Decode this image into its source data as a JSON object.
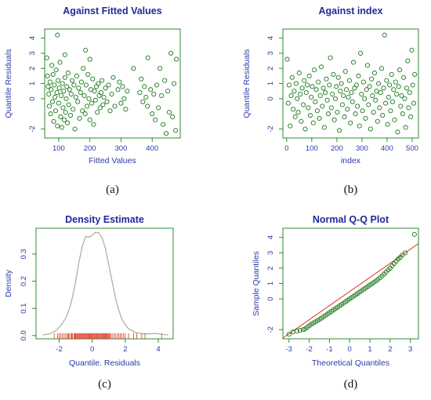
{
  "figure_panels": [
    "(a)",
    "(b)",
    "(c)",
    "(d)"
  ],
  "chart_data": [
    {
      "id": "a",
      "type": "scatter",
      "title": "Against Fitted Values",
      "xlabel": "Fitted Values",
      "ylabel": "Quantile Residuals",
      "panel_label": "(a)",
      "xlim": [
        55,
        490
      ],
      "ylim": [
        -2.6,
        4.6
      ],
      "xticks": [
        100,
        200,
        300,
        400
      ],
      "yticks": [
        -2,
        0,
        1,
        2,
        3,
        4
      ],
      "marker_color": "#1a7a1a",
      "points": [
        [
          62,
          2.7
        ],
        [
          64,
          1.5
        ],
        [
          66,
          0.8
        ],
        [
          68,
          0.3
        ],
        [
          70,
          -0.5
        ],
        [
          72,
          1.1
        ],
        [
          74,
          -1.0
        ],
        [
          76,
          0.6
        ],
        [
          78,
          2.2
        ],
        [
          80,
          -0.2
        ],
        [
          82,
          1.6
        ],
        [
          84,
          -1.5
        ],
        [
          86,
          0.9
        ],
        [
          88,
          0.1
        ],
        [
          90,
          -0.8
        ],
        [
          92,
          1.9
        ],
        [
          94,
          0.4
        ],
        [
          96,
          -1.8
        ],
        [
          98,
          1.2
        ],
        [
          100,
          -0.3
        ],
        [
          102,
          0.7
        ],
        [
          104,
          2.4
        ],
        [
          106,
          -1.2
        ],
        [
          108,
          0.2
        ],
        [
          110,
          -1.9
        ],
        [
          112,
          1.0
        ],
        [
          114,
          -0.6
        ],
        [
          116,
          0.5
        ],
        [
          118,
          -1.4
        ],
        [
          120,
          1.4
        ],
        [
          122,
          -0.9
        ],
        [
          124,
          0.0
        ],
        [
          126,
          0.8
        ],
        [
          128,
          -1.6
        ],
        [
          130,
          1.7
        ],
        [
          132,
          -0.4
        ],
        [
          135,
          0.6
        ],
        [
          138,
          -1.1
        ],
        [
          140,
          0.3
        ],
        [
          143,
          1.2
        ],
        [
          146,
          -0.7
        ],
        [
          149,
          0.9
        ],
        [
          152,
          -2.0
        ],
        [
          155,
          0.1
        ],
        [
          158,
          1.5
        ],
        [
          161,
          -0.2
        ],
        [
          164,
          0.7
        ],
        [
          167,
          -1.3
        ],
        [
          170,
          0.4
        ],
        [
          173,
          1.1
        ],
        [
          176,
          -0.8
        ],
        [
          179,
          2.0
        ],
        [
          182,
          0.2
        ],
        [
          185,
          -1.0
        ],
        [
          188,
          0.9
        ],
        [
          191,
          -0.5
        ],
        [
          194,
          1.6
        ],
        [
          197,
          0.0
        ],
        [
          200,
          -1.4
        ],
        [
          203,
          0.6
        ],
        [
          206,
          -0.3
        ],
        [
          209,
          1.3
        ],
        [
          212,
          -1.7
        ],
        [
          215,
          0.5
        ],
        [
          218,
          -0.1
        ],
        [
          221,
          0.8
        ],
        [
          224,
          -0.9
        ],
        [
          227,
          1.0
        ],
        [
          230,
          0.2
        ],
        [
          233,
          -0.6
        ],
        [
          236,
          0.4
        ],
        [
          239,
          1.2
        ],
        [
          242,
          -0.4
        ],
        [
          245,
          0.1
        ],
        [
          250,
          0.7
        ],
        [
          255,
          -0.2
        ],
        [
          260,
          0.9
        ],
        [
          265,
          -0.8
        ],
        [
          270,
          0.3
        ],
        [
          275,
          1.4
        ],
        [
          280,
          -0.5
        ],
        [
          290,
          0.6
        ],
        [
          295,
          1.1
        ],
        [
          300,
          -0.3
        ],
        [
          305,
          0.8
        ],
        [
          310,
          0.0
        ],
        [
          315,
          -0.7
        ],
        [
          320,
          0.5
        ],
        [
          360,
          0.4
        ],
        [
          365,
          1.3
        ],
        [
          370,
          -0.2
        ],
        [
          375,
          0.8
        ],
        [
          380,
          0.1
        ],
        [
          385,
          -0.5
        ],
        [
          395,
          0.6
        ],
        [
          400,
          -1.0
        ],
        [
          405,
          0.3
        ],
        [
          410,
          -1.4
        ],
        [
          415,
          0.9
        ],
        [
          420,
          -0.6
        ],
        [
          425,
          2.0
        ],
        [
          430,
          0.2
        ],
        [
          435,
          -1.7
        ],
        [
          440,
          1.2
        ],
        [
          445,
          -2.3
        ],
        [
          450,
          0.5
        ],
        [
          455,
          -0.9
        ],
        [
          460,
          3.0
        ],
        [
          465,
          -1.2
        ],
        [
          470,
          1.0
        ],
        [
          475,
          -2.1
        ],
        [
          478,
          2.6
        ],
        [
          96,
          4.2
        ],
        [
          186,
          3.2
        ],
        [
          120,
          2.9
        ],
        [
          200,
          2.6
        ],
        [
          340,
          2.0
        ],
        [
          386,
          2.7
        ]
      ]
    },
    {
      "id": "b",
      "type": "scatter",
      "title": "Against  index",
      "xlabel": "index",
      "ylabel": "Quantile Residuals",
      "panel_label": "(b)",
      "xlim": [
        -15,
        525
      ],
      "ylim": [
        -2.6,
        4.6
      ],
      "xticks": [
        0,
        100,
        200,
        300,
        400,
        500
      ],
      "yticks": [
        -2,
        0,
        1,
        2,
        3,
        4
      ],
      "marker_color": "#1a7a1a",
      "points": [
        [
          2,
          2.6
        ],
        [
          6,
          -0.3
        ],
        [
          10,
          0.9
        ],
        [
          14,
          -1.8
        ],
        [
          18,
          0.2
        ],
        [
          22,
          1.4
        ],
        [
          26,
          -0.7
        ],
        [
          30,
          0.5
        ],
        [
          34,
          -1.2
        ],
        [
          38,
          1.0
        ],
        [
          42,
          0.0
        ],
        [
          46,
          -0.9
        ],
        [
          50,
          1.7
        ],
        [
          54,
          0.3
        ],
        [
          58,
          -1.5
        ],
        [
          62,
          0.7
        ],
        [
          66,
          -0.4
        ],
        [
          70,
          1.2
        ],
        [
          74,
          -2.0
        ],
        [
          78,
          0.4
        ],
        [
          82,
          0.9
        ],
        [
          86,
          -0.6
        ],
        [
          90,
          1.5
        ],
        [
          94,
          -1.1
        ],
        [
          98,
          0.1
        ],
        [
          102,
          0.8
        ],
        [
          106,
          -1.6
        ],
        [
          110,
          1.9
        ],
        [
          114,
          -0.2
        ],
        [
          118,
          0.6
        ],
        [
          122,
          -0.8
        ],
        [
          126,
          1.1
        ],
        [
          130,
          -1.3
        ],
        [
          134,
          0.2
        ],
        [
          138,
          2.1
        ],
        [
          142,
          -0.5
        ],
        [
          146,
          0.7
        ],
        [
          150,
          -1.9
        ],
        [
          154,
          0.4
        ],
        [
          158,
          1.3
        ],
        [
          162,
          -0.1
        ],
        [
          166,
          -1.0
        ],
        [
          170,
          0.9
        ],
        [
          174,
          2.7
        ],
        [
          178,
          -0.6
        ],
        [
          182,
          0.3
        ],
        [
          186,
          1.6
        ],
        [
          190,
          -1.4
        ],
        [
          194,
          0.0
        ],
        [
          198,
          0.8
        ],
        [
          202,
          -0.9
        ],
        [
          206,
          1.4
        ],
        [
          210,
          -2.1
        ],
        [
          214,
          0.5
        ],
        [
          218,
          1.0
        ],
        [
          222,
          -0.4
        ],
        [
          226,
          0.2
        ],
        [
          230,
          -1.2
        ],
        [
          234,
          1.8
        ],
        [
          238,
          0.6
        ],
        [
          242,
          -0.7
        ],
        [
          246,
          0.1
        ],
        [
          250,
          1.2
        ],
        [
          254,
          -1.6
        ],
        [
          258,
          0.4
        ],
        [
          262,
          -0.2
        ],
        [
          266,
          2.4
        ],
        [
          270,
          0.7
        ],
        [
          274,
          -1.0
        ],
        [
          278,
          0.9
        ],
        [
          282,
          -0.5
        ],
        [
          286,
          1.5
        ],
        [
          290,
          -1.8
        ],
        [
          294,
          3.0
        ],
        [
          298,
          0.3
        ],
        [
          302,
          -0.8
        ],
        [
          306,
          1.1
        ],
        [
          310,
          0.0
        ],
        [
          314,
          -1.3
        ],
        [
          318,
          0.6
        ],
        [
          322,
          2.2
        ],
        [
          326,
          -0.4
        ],
        [
          330,
          0.8
        ],
        [
          334,
          -2.0
        ],
        [
          338,
          1.3
        ],
        [
          342,
          0.2
        ],
        [
          346,
          -0.9
        ],
        [
          350,
          1.7
        ],
        [
          354,
          -0.1
        ],
        [
          358,
          0.5
        ],
        [
          362,
          -1.5
        ],
        [
          366,
          1.0
        ],
        [
          370,
          -0.6
        ],
        [
          374,
          0.4
        ],
        [
          378,
          2.0
        ],
        [
          382,
          -1.1
        ],
        [
          386,
          0.7
        ],
        [
          390,
          4.2
        ],
        [
          394,
          -0.3
        ],
        [
          398,
          1.2
        ],
        [
          402,
          -1.7
        ],
        [
          406,
          0.1
        ],
        [
          410,
          0.9
        ],
        [
          414,
          -0.8
        ],
        [
          418,
          1.6
        ],
        [
          422,
          -0.2
        ],
        [
          426,
          0.6
        ],
        [
          430,
          -1.4
        ],
        [
          434,
          1.1
        ],
        [
          438,
          0.3
        ],
        [
          442,
          -2.2
        ],
        [
          446,
          0.8
        ],
        [
          450,
          1.9
        ],
        [
          454,
          -0.5
        ],
        [
          458,
          0.2
        ],
        [
          462,
          -1.0
        ],
        [
          466,
          1.4
        ],
        [
          470,
          0.0
        ],
        [
          474,
          -1.9
        ],
        [
          478,
          0.7
        ],
        [
          482,
          2.5
        ],
        [
          486,
          -0.6
        ],
        [
          490,
          0.4
        ],
        [
          494,
          -1.2
        ],
        [
          498,
          3.2
        ],
        [
          502,
          0.9
        ],
        [
          506,
          -0.3
        ],
        [
          510,
          1.6
        ]
      ]
    },
    {
      "id": "c",
      "type": "line",
      "title": "Density Estimate",
      "xlabel": "Quantile. Residuals",
      "ylabel": "Density",
      "panel_label": "(c)",
      "xlim": [
        -3.4,
        4.9
      ],
      "ylim": [
        -0.012,
        0.395
      ],
      "xticks": [
        -2,
        0,
        2,
        4
      ],
      "yticks": [
        0.0,
        0.1,
        0.2,
        0.3
      ],
      "line_color": "#b5b19a",
      "rug_color": "#e0301e",
      "x": [
        -3.0,
        -2.6,
        -2.2,
        -2.0,
        -1.8,
        -1.6,
        -1.4,
        -1.2,
        -1.0,
        -0.8,
        -0.6,
        -0.4,
        -0.2,
        0.0,
        0.2,
        0.4,
        0.6,
        0.8,
        1.0,
        1.2,
        1.4,
        1.6,
        1.8,
        2.0,
        2.2,
        2.6,
        3.0,
        3.4,
        3.8,
        4.2,
        4.6
      ],
      "y": [
        0.002,
        0.006,
        0.018,
        0.03,
        0.045,
        0.065,
        0.095,
        0.14,
        0.2,
        0.27,
        0.33,
        0.365,
        0.362,
        0.37,
        0.38,
        0.378,
        0.36,
        0.32,
        0.26,
        0.2,
        0.14,
        0.095,
        0.06,
        0.04,
        0.025,
        0.012,
        0.007,
        0.006,
        0.008,
        0.005,
        0.002
      ],
      "rug": [
        -2.3,
        -2.1,
        -2.0,
        -1.9,
        -1.8,
        -1.7,
        -1.6,
        -1.5,
        -1.45,
        -1.4,
        -1.3,
        -1.25,
        -1.2,
        -1.1,
        -1.05,
        -1.0,
        -0.95,
        -0.9,
        -0.85,
        -0.8,
        -0.75,
        -0.7,
        -0.65,
        -0.6,
        -0.55,
        -0.5,
        -0.45,
        -0.4,
        -0.35,
        -0.3,
        -0.25,
        -0.2,
        -0.15,
        -0.1,
        -0.05,
        0.0,
        0.05,
        0.1,
        0.15,
        0.2,
        0.25,
        0.3,
        0.35,
        0.4,
        0.45,
        0.5,
        0.55,
        0.6,
        0.65,
        0.7,
        0.75,
        0.8,
        0.85,
        0.9,
        0.95,
        1.0,
        1.05,
        1.1,
        1.2,
        1.3,
        1.4,
        1.5,
        1.6,
        1.7,
        1.8,
        1.9,
        2.0,
        2.2,
        2.5,
        2.7,
        3.0,
        3.2,
        4.2
      ]
    },
    {
      "id": "d",
      "type": "scatter",
      "title": "Normal Q-Q Plot",
      "xlabel": "Theoretical Quantiles",
      "ylabel": "Sample Quantiles",
      "panel_label": "(d)",
      "xlim": [
        -3.3,
        3.4
      ],
      "ylim": [
        -2.6,
        4.6
      ],
      "xticks": [
        -3,
        -2,
        -1,
        0,
        1,
        2,
        3
      ],
      "yticks": [
        -2,
        0,
        1,
        2,
        3,
        4
      ],
      "marker_color": "#1a7a1a",
      "line_color": "#e0301e",
      "ref_line": [
        [
          -3.3,
          -2.55
        ],
        [
          3.4,
          3.6
        ]
      ],
      "points": [
        [
          -3.0,
          -2.3
        ],
        [
          -2.8,
          -2.15
        ],
        [
          -2.6,
          -2.1
        ],
        [
          -2.45,
          -2.05
        ],
        [
          -2.3,
          -2.0
        ],
        [
          -2.2,
          -1.95
        ],
        [
          -2.1,
          -1.85
        ],
        [
          -2.0,
          -1.75
        ],
        [
          -1.9,
          -1.65
        ],
        [
          -1.8,
          -1.58
        ],
        [
          -1.7,
          -1.5
        ],
        [
          -1.6,
          -1.42
        ],
        [
          -1.5,
          -1.34
        ],
        [
          -1.4,
          -1.26
        ],
        [
          -1.3,
          -1.17
        ],
        [
          -1.2,
          -1.08
        ],
        [
          -1.1,
          -0.99
        ],
        [
          -1.0,
          -0.9
        ],
        [
          -0.9,
          -0.81
        ],
        [
          -0.8,
          -0.72
        ],
        [
          -0.7,
          -0.63
        ],
        [
          -0.6,
          -0.54
        ],
        [
          -0.5,
          -0.45
        ],
        [
          -0.4,
          -0.36
        ],
        [
          -0.3,
          -0.27
        ],
        [
          -0.2,
          -0.18
        ],
        [
          -0.1,
          -0.09
        ],
        [
          0.0,
          0.0
        ],
        [
          0.1,
          0.09
        ],
        [
          0.2,
          0.18
        ],
        [
          0.3,
          0.27
        ],
        [
          0.4,
          0.36
        ],
        [
          0.5,
          0.45
        ],
        [
          0.6,
          0.54
        ],
        [
          0.7,
          0.63
        ],
        [
          0.8,
          0.72
        ],
        [
          0.9,
          0.81
        ],
        [
          1.0,
          0.9
        ],
        [
          1.1,
          0.99
        ],
        [
          1.2,
          1.08
        ],
        [
          1.3,
          1.17
        ],
        [
          1.4,
          1.27
        ],
        [
          1.5,
          1.38
        ],
        [
          1.6,
          1.5
        ],
        [
          1.7,
          1.62
        ],
        [
          1.8,
          1.75
        ],
        [
          1.9,
          1.88
        ],
        [
          2.0,
          2.0
        ],
        [
          2.1,
          2.15
        ],
        [
          2.2,
          2.3
        ],
        [
          2.3,
          2.45
        ],
        [
          2.4,
          2.6
        ],
        [
          2.5,
          2.7
        ],
        [
          2.6,
          2.85
        ],
        [
          2.75,
          3.0
        ],
        [
          3.2,
          4.2
        ]
      ]
    }
  ]
}
